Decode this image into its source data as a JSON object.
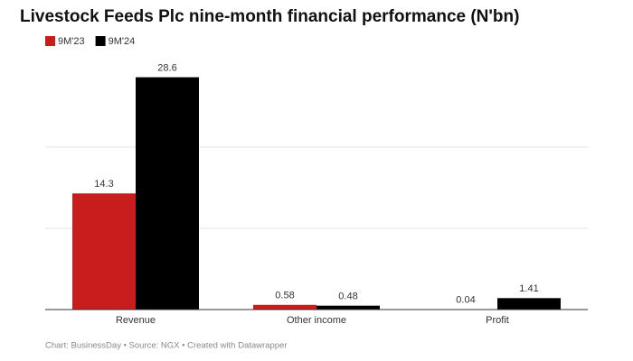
{
  "chart_data": {
    "type": "bar",
    "title": "Livestock Feeds Plc nine-month financial performance (N'bn)",
    "categories": [
      "Revenue",
      "Other income",
      "Profit"
    ],
    "series": [
      {
        "name": "9M'23",
        "color": "#c71e1d",
        "values": [
          14.3,
          0.58,
          0.04
        ]
      },
      {
        "name": "9M'24",
        "color": "#000000",
        "values": [
          28.6,
          0.48,
          1.41
        ]
      }
    ],
    "ylim": [
      0,
      30
    ],
    "yticks": [
      0,
      10,
      20
    ],
    "grid": true,
    "footer": "Chart: BusinessDay • Source: NGX • Created with Datawrapper"
  }
}
